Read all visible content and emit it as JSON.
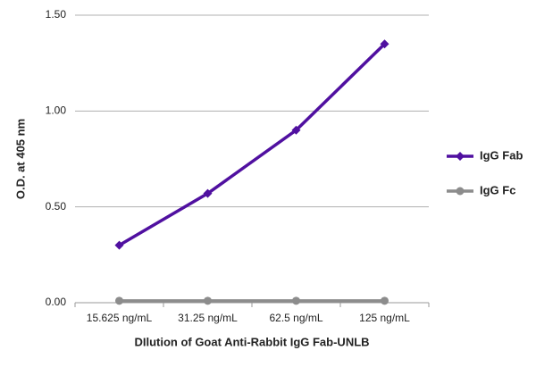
{
  "chart_data": {
    "type": "line",
    "y_label": "O.D. at 405 nm",
    "x_label": "DIlution of Goat Anti-Rabbit IgG Fab-UNLB",
    "categories": [
      "15.625 ng/mL",
      "31.25 ng/mL",
      "62.5 ng/mL",
      "125 ng/mL"
    ],
    "series": [
      {
        "name": "IgG Fab",
        "color": "#5010a0",
        "marker": "diamond",
        "values": [
          0.3,
          0.57,
          0.9,
          1.35
        ]
      },
      {
        "name": "IgG Fc",
        "color": "#8c8c8c",
        "marker": "circle",
        "values": [
          0.01,
          0.01,
          0.01,
          0.01
        ]
      }
    ],
    "ylim": [
      0,
      1.5
    ],
    "yticks": [
      {
        "value": 0,
        "label": "0.00"
      },
      {
        "value": 0.5,
        "label": "0.50"
      },
      {
        "value": 1,
        "label": "1.00"
      },
      {
        "value": 1.5,
        "label": "1.50"
      }
    ],
    "grid": true,
    "legend": "right"
  }
}
